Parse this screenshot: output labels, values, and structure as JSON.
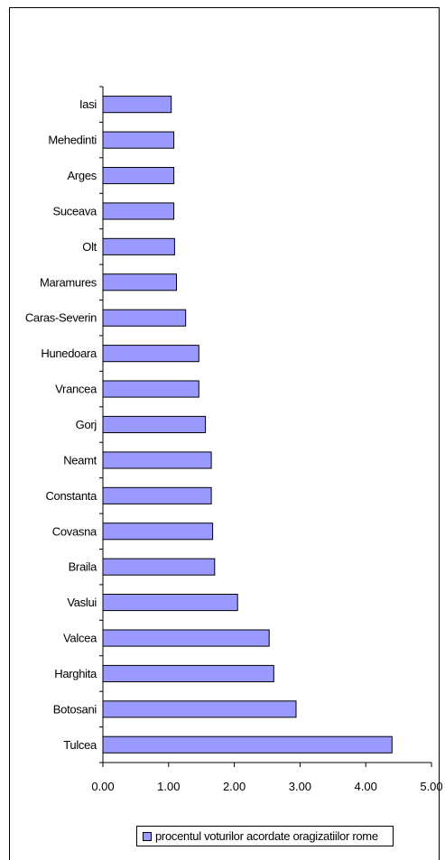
{
  "colors": {
    "bar_fill": "#9999ff",
    "bar_stroke": "#000000",
    "axis": "#000000"
  },
  "legend": {
    "label": "procentul voturilor acordate oragizatiilor rome"
  },
  "chart_data": {
    "type": "bar",
    "orientation": "horizontal",
    "categories": [
      "Iasi",
      "Mehedinti",
      "Arges",
      "Suceava",
      "Olt",
      "Maramures",
      "Caras-Severin",
      "Hunedoara",
      "Vrancea",
      "Gorj",
      "Neamt",
      "Constanta",
      "Covasna",
      "Braila",
      "Vaslui",
      "Valcea",
      "Harghita",
      "Botosani",
      "Tulcea"
    ],
    "series": [
      {
        "name": "procentul voturilor acordate oragizatiilor rome",
        "values": [
          1.04,
          1.08,
          1.08,
          1.08,
          1.09,
          1.12,
          1.26,
          1.46,
          1.46,
          1.56,
          1.65,
          1.65,
          1.67,
          1.7,
          2.05,
          2.53,
          2.6,
          2.94,
          4.4
        ]
      }
    ],
    "x_ticks": [
      "0.00",
      "1.00",
      "2.00",
      "3.00",
      "4.00",
      "5.00"
    ],
    "xlim": [
      0,
      5
    ],
    "grid": false,
    "legend_position": "bottom"
  }
}
